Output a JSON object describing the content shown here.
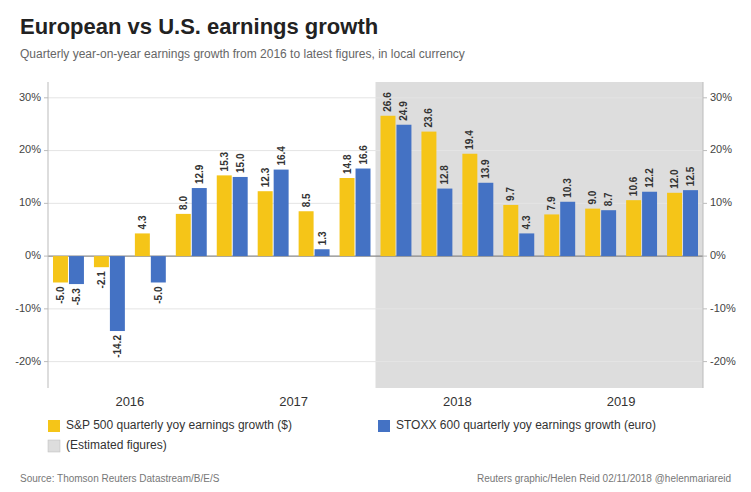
{
  "chart_data": {
    "type": "bar",
    "title": "European vs U.S. earnings growth",
    "subtitle": "Quarterly year-on-year earnings growth from 2016 to latest figures, in local currency",
    "annotations": [
      "Source: Thomson Reuters Datastream/B/E/S",
      "Reuters graphic/Helen Reid 02/11/2018 @helenmariareid"
    ],
    "categories": [
      "2016",
      null,
      null,
      null,
      "2017",
      null,
      null,
      null,
      "2018",
      null,
      null,
      null,
      "2019",
      null,
      null,
      null
    ],
    "series": [
      {
        "name": "S&P 500 quarterly yoy earnings growth ($)",
        "color": "#f5c518",
        "values": [
          -5.0,
          -2.1,
          4.3,
          8.0,
          15.3,
          12.3,
          8.5,
          14.8,
          26.6,
          23.6,
          19.4,
          9.7,
          7.9,
          9.0,
          10.6,
          12.0
        ],
        "value_labels": [
          "-5.0",
          "-2.1",
          "4.3",
          "8.0",
          "15.3",
          "12.3",
          "8.5",
          "14.8",
          "26.6",
          "23.6",
          "19.4",
          "9.7",
          "7.9",
          "9.0",
          "10.6",
          "12.0"
        ]
      },
      {
        "name": "STOXX 600 quarterly yoy earnings growth (euro)",
        "color": "#4472c4",
        "values": [
          -5.3,
          -14.2,
          -5.0,
          12.9,
          15.0,
          16.4,
          1.3,
          16.6,
          24.9,
          12.8,
          13.9,
          4.3,
          10.3,
          8.7,
          12.2,
          12.5
        ],
        "value_labels": [
          "-5.3",
          "-14.2",
          "-5.0",
          "12.9",
          "15.0",
          "16.4",
          "1.3",
          "16.6",
          "24.9",
          "12.8",
          "13.9",
          "4.3",
          "10.3",
          "8.7",
          "12.2",
          "12.5"
        ]
      }
    ],
    "shaded_region": {
      "label": "(Estimated figures)",
      "start": 8,
      "color": "#dddddd"
    },
    "ylim": [
      -25,
      33
    ],
    "yticks": [
      {
        "value": -20,
        "label": "-20%"
      },
      {
        "value": -10,
        "label": "-10%"
      },
      {
        "value": 0,
        "label": "0%"
      },
      {
        "value": 10,
        "label": "10%"
      },
      {
        "value": 20,
        "label": "20%"
      },
      {
        "value": 30,
        "label": "30%"
      }
    ],
    "y2lim": [
      -25,
      33
    ],
    "y2ticks": [
      {
        "value": -20,
        "label": "-20%"
      },
      {
        "value": -10,
        "label": "-10%"
      },
      {
        "value": 0,
        "label": "0%"
      },
      {
        "value": 10,
        "label": "10%"
      },
      {
        "value": 20,
        "label": "20%"
      },
      {
        "value": 30,
        "label": "30%"
      }
    ],
    "grid": true,
    "data_labels": true,
    "legend": "bottom"
  }
}
